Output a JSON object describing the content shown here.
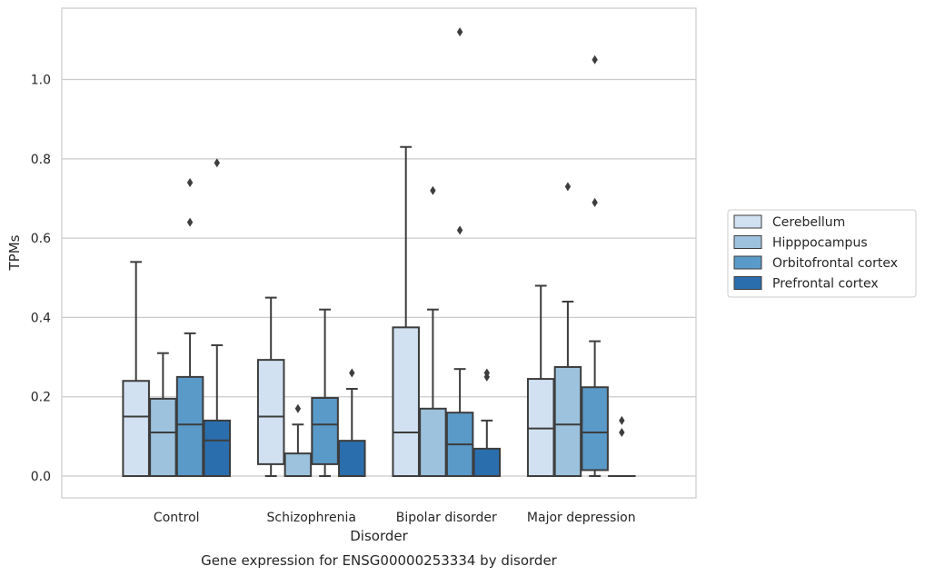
{
  "chart_data": {
    "type": "box",
    "title": "",
    "caption": "Gene expression for ENSG00000253334 by disorder",
    "xlabel": "Disorder",
    "ylabel": "TPMs",
    "ylim": [
      -0.055,
      1.18
    ],
    "yticks": [
      0.0,
      0.2,
      0.4,
      0.6,
      0.8,
      1.0
    ],
    "ytick_labels": [
      "0.0",
      "0.2",
      "0.4",
      "0.6",
      "0.8",
      "1.0"
    ],
    "grid": "horizontal",
    "legend_position": "right",
    "categories": [
      "Control",
      "Schizophrenia",
      "Bipolar disorder",
      "Major depression"
    ],
    "series": [
      {
        "name": "Cerebellum",
        "color": "#d1e1f1",
        "boxes": [
          {
            "whislo": 0.0,
            "q1": 0.0,
            "med": 0.15,
            "q3": 0.24,
            "whishi": 0.54,
            "fliers": []
          },
          {
            "whislo": 0.0,
            "q1": 0.03,
            "med": 0.15,
            "q3": 0.293,
            "whishi": 0.45,
            "fliers": []
          },
          {
            "whislo": 0.0,
            "q1": 0.0,
            "med": 0.11,
            "q3": 0.375,
            "whishi": 0.83,
            "fliers": []
          },
          {
            "whislo": 0.0,
            "q1": 0.0,
            "med": 0.12,
            "q3": 0.245,
            "whishi": 0.48,
            "fliers": []
          }
        ]
      },
      {
        "name": "Hipppocampus",
        "color": "#9cc2dd",
        "boxes": [
          {
            "whislo": 0.0,
            "q1": 0.0,
            "med": 0.11,
            "q3": 0.195,
            "whishi": 0.31,
            "fliers": []
          },
          {
            "whislo": 0.0,
            "q1": 0.0,
            "med": 0.0,
            "q3": 0.057,
            "whishi": 0.13,
            "fliers": [
              0.17
            ]
          },
          {
            "whislo": 0.0,
            "q1": 0.0,
            "med": 0.0,
            "q3": 0.17,
            "whishi": 0.42,
            "fliers": [
              0.72
            ]
          },
          {
            "whislo": 0.0,
            "q1": 0.0,
            "med": 0.13,
            "q3": 0.275,
            "whishi": 0.44,
            "fliers": [
              0.73
            ]
          }
        ]
      },
      {
        "name": "Orbitofrontal cortex",
        "color": "#5a9ac8",
        "boxes": [
          {
            "whislo": 0.0,
            "q1": 0.0,
            "med": 0.13,
            "q3": 0.25,
            "whishi": 0.36,
            "fliers": [
              0.64,
              0.74
            ]
          },
          {
            "whislo": 0.0,
            "q1": 0.03,
            "med": 0.13,
            "q3": 0.197,
            "whishi": 0.42,
            "fliers": []
          },
          {
            "whislo": 0.0,
            "q1": 0.0,
            "med": 0.08,
            "q3": 0.16,
            "whishi": 0.27,
            "fliers": [
              0.62,
              1.12
            ]
          },
          {
            "whislo": 0.0,
            "q1": 0.015,
            "med": 0.11,
            "q3": 0.224,
            "whishi": 0.34,
            "fliers": [
              0.69,
              1.05
            ]
          }
        ]
      },
      {
        "name": "Prefrontal cortex",
        "color": "#2a6eae",
        "boxes": [
          {
            "whislo": 0.0,
            "q1": 0.0,
            "med": 0.09,
            "q3": 0.14,
            "whishi": 0.33,
            "fliers": [
              0.79
            ]
          },
          {
            "whislo": 0.0,
            "q1": 0.0,
            "med": 0.0,
            "q3": 0.089,
            "whishi": 0.22,
            "fliers": [
              0.26
            ]
          },
          {
            "whislo": 0.0,
            "q1": 0.0,
            "med": 0.0,
            "q3": 0.069,
            "whishi": 0.14,
            "fliers": [
              0.25,
              0.26
            ]
          },
          {
            "whislo": 0.0,
            "q1": 0.0,
            "med": 0.0,
            "q3": 0.0,
            "whishi": 0.0,
            "fliers": [
              0.11,
              0.14
            ]
          }
        ]
      }
    ]
  }
}
